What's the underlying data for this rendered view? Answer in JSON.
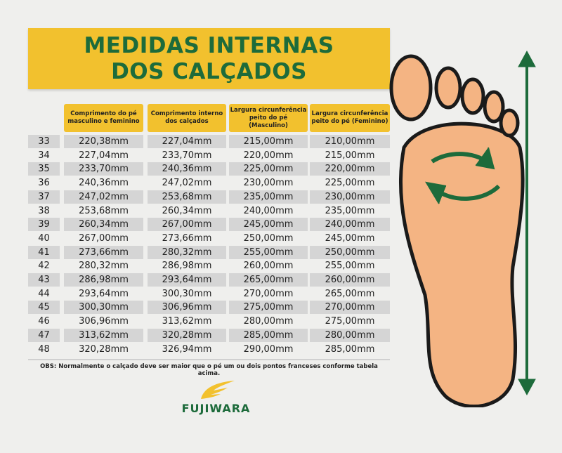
{
  "title": {
    "line1": "MEDIDAS INTERNAS",
    "line2": "DOS CALÇADOS"
  },
  "colors": {
    "accent_yellow": "#f2c12e",
    "brand_green": "#1d6b3b",
    "row_shade": "#d5d5d5",
    "foot_skin": "#f4b483"
  },
  "table": {
    "headers": [
      "Comprimento do pé masculino e feminino",
      "Comprimento interno dos calçados",
      "Largura circunferência peito do pé (Masculino)",
      "Largura circunferência peito do pé (Feminino)"
    ],
    "rows": [
      [
        "33",
        "220,38mm",
        "227,04mm",
        "215,00mm",
        "210,00mm"
      ],
      [
        "34",
        "227,04mm",
        "233,70mm",
        "220,00mm",
        "215,00mm"
      ],
      [
        "35",
        "233,70mm",
        "240,36mm",
        "225,00mm",
        "220,00mm"
      ],
      [
        "36",
        "240,36mm",
        "247,02mm",
        "230,00mm",
        "225,00mm"
      ],
      [
        "37",
        "247,02mm",
        "253,68mm",
        "235,00mm",
        "230,00mm"
      ],
      [
        "38",
        "253,68mm",
        "260,34mm",
        "240,00mm",
        "235,00mm"
      ],
      [
        "39",
        "260,34mm",
        "267,00mm",
        "245,00mm",
        "240,00mm"
      ],
      [
        "40",
        "267,00mm",
        "273,66mm",
        "250,00mm",
        "245,00mm"
      ],
      [
        "41",
        "273,66mm",
        "280,32mm",
        "255,00mm",
        "250,00mm"
      ],
      [
        "42",
        "280,32mm",
        "286,98mm",
        "260,00mm",
        "255,00mm"
      ],
      [
        "43",
        "286,98mm",
        "293,64mm",
        "265,00mm",
        "260,00mm"
      ],
      [
        "44",
        "293,64mm",
        "300,30mm",
        "270,00mm",
        "265,00mm"
      ],
      [
        "45",
        "300,30mm",
        "306,96mm",
        "275,00mm",
        "270,00mm"
      ],
      [
        "46",
        "306,96mm",
        "313,62mm",
        "280,00mm",
        "275,00mm"
      ],
      [
        "47",
        "313,62mm",
        "320,28mm",
        "285,00mm",
        "280,00mm"
      ],
      [
        "48",
        "320,28mm",
        "326,94mm",
        "290,00mm",
        "285,00mm"
      ]
    ]
  },
  "note": "OBS: Normalmente o calçado deve ser maior que o pé um ou dois pontos franceses conforme tabela acima.",
  "logo": {
    "text": "FUJIWARA",
    "icon": "wing-logo-icon"
  },
  "illustration": {
    "icons": [
      "foot-sole-icon",
      "circular-arrows-icon",
      "double-arrow-vertical-icon"
    ]
  }
}
